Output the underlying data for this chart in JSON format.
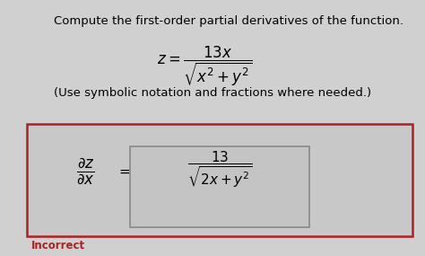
{
  "bg_color": "#d0d0d0",
  "title_text": "Compute the first-order partial derivatives of the function.",
  "title_fontsize": 9.5,
  "note_text": "(Use symbolic notation and fractions where needed.)",
  "note_fontsize": 9.5,
  "incorrect_text": "Incorrect",
  "incorrect_color": "#aa2222",
  "box_outer_color": "#aa2222",
  "box_inner_color": "#888888",
  "formula_fontsize": 12,
  "answer_fontsize": 11
}
